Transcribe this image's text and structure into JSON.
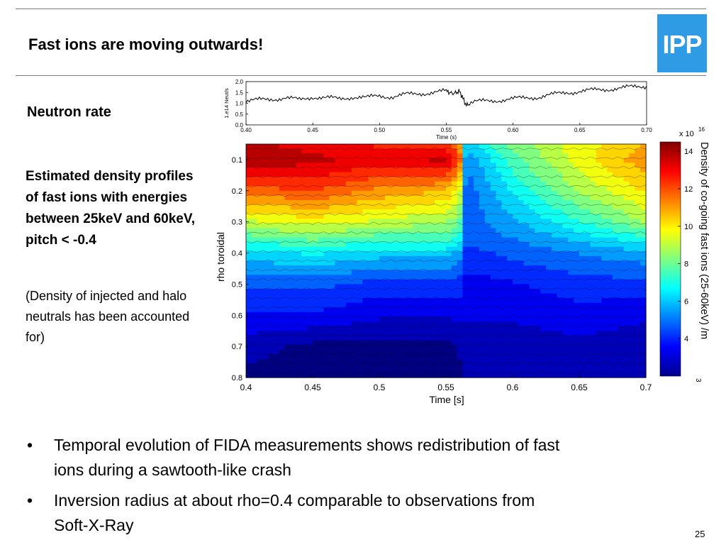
{
  "slide": {
    "title": "Fast ions are moving outwards!",
    "logo": "IPP",
    "neutron_label": "Neutron rate",
    "description": "Estimated density profiles of fast ions with energies between 25keV and 60keV, pitch < -0.4",
    "note": "(Density of injected and halo neutrals has been accounted for)",
    "bullets": [
      "Temporal evolution of FIDA measurements shows redistribution of fast ions during a sawtooth-like crash",
      "Inversion radius at about rho=0.4 comparable to observations from Soft-X-Ray"
    ],
    "bullet_symbol": "•",
    "page_number": "25"
  },
  "colors": {
    "logo": "#2f9be4",
    "trace": "#000000",
    "contour_line": "#000000"
  },
  "chart_data": [
    {
      "type": "line",
      "ylabel": "1.e14 Neut/s",
      "xlabel": "Time (s)",
      "xlim": [
        0.4,
        0.7
      ],
      "ylim": [
        0.0,
        2.0
      ],
      "xticks": [
        "0.40",
        "0.45",
        "0.50",
        "0.55",
        "0.60",
        "0.65",
        "0.70"
      ],
      "yticks": [
        "0.0",
        "0.5",
        "1.0",
        "1.5",
        "2.0"
      ],
      "series": [
        {
          "x": [
            0.4,
            0.41,
            0.42,
            0.43,
            0.44,
            0.45,
            0.46,
            0.47,
            0.48,
            0.49,
            0.5,
            0.51,
            0.52,
            0.53,
            0.54,
            0.55,
            0.555,
            0.56,
            0.565,
            0.57,
            0.58,
            0.59,
            0.6,
            0.61,
            0.62,
            0.63,
            0.64,
            0.65,
            0.66,
            0.67,
            0.68,
            0.69,
            0.7
          ],
          "y": [
            1.1,
            1.15,
            1.2,
            1.25,
            1.15,
            1.3,
            1.25,
            1.2,
            1.3,
            1.25,
            1.35,
            1.3,
            1.4,
            1.45,
            1.5,
            1.55,
            1.45,
            1.55,
            0.9,
            1.05,
            1.1,
            1.15,
            1.2,
            1.25,
            1.3,
            1.4,
            1.5,
            1.55,
            1.6,
            1.65,
            1.7,
            1.75,
            1.8
          ]
        }
      ]
    },
    {
      "type": "heatmap",
      "xlabel": "Time [s]",
      "ylabel": "rho toroidal",
      "xlim": [
        0.4,
        0.7
      ],
      "ylim": [
        0.05,
        0.8
      ],
      "xticks": [
        "0.4",
        "0.45",
        "0.5",
        "0.55",
        "0.6",
        "0.65",
        "0.7"
      ],
      "yticks": [
        "0.1",
        "0.2",
        "0.3",
        "0.4",
        "0.5",
        "0.6",
        "0.7",
        "0.8"
      ],
      "colorbar": {
        "label": "Density of co-going fast ions (25-60keV) /m",
        "label_superscript": "3",
        "scale_label": "x 10",
        "scale_exponent": "16",
        "ticks": [
          "4",
          "6",
          "8",
          "10",
          "12",
          "14"
        ],
        "range": [
          2,
          14.5
        ],
        "colormap": "jet"
      },
      "x": [
        0.4,
        0.45,
        0.5,
        0.55,
        0.56,
        0.565,
        0.6,
        0.65,
        0.7
      ],
      "y": [
        0.05,
        0.1,
        0.2,
        0.3,
        0.35,
        0.4,
        0.5,
        0.6,
        0.7,
        0.8
      ],
      "z": [
        [
          14.0,
          13.5,
          13.0,
          12.5,
          12.0,
          6.5,
          8.5,
          10.0,
          11.0
        ],
        [
          14.5,
          14.0,
          13.5,
          14.0,
          12.5,
          5.5,
          8.0,
          10.0,
          11.5
        ],
        [
          12.0,
          12.5,
          11.5,
          11.0,
          10.0,
          5.0,
          7.0,
          9.0,
          10.5
        ],
        [
          9.5,
          10.0,
          9.5,
          9.0,
          8.5,
          5.0,
          6.0,
          7.5,
          9.0
        ],
        [
          8.0,
          8.5,
          8.0,
          8.0,
          7.5,
          5.0,
          5.5,
          6.5,
          7.5
        ],
        [
          6.5,
          7.0,
          6.5,
          6.5,
          6.0,
          4.5,
          5.0,
          5.5,
          6.0
        ],
        [
          5.0,
          5.0,
          4.5,
          4.5,
          4.5,
          3.8,
          4.0,
          4.5,
          4.5
        ],
        [
          4.0,
          4.0,
          3.5,
          3.5,
          3.5,
          3.5,
          3.5,
          3.8,
          3.5
        ],
        [
          3.0,
          2.5,
          2.5,
          2.5,
          2.8,
          3.0,
          3.0,
          3.2,
          3.0
        ],
        [
          2.5,
          2.2,
          2.2,
          2.2,
          2.5,
          2.8,
          2.8,
          3.0,
          2.8
        ]
      ]
    }
  ]
}
